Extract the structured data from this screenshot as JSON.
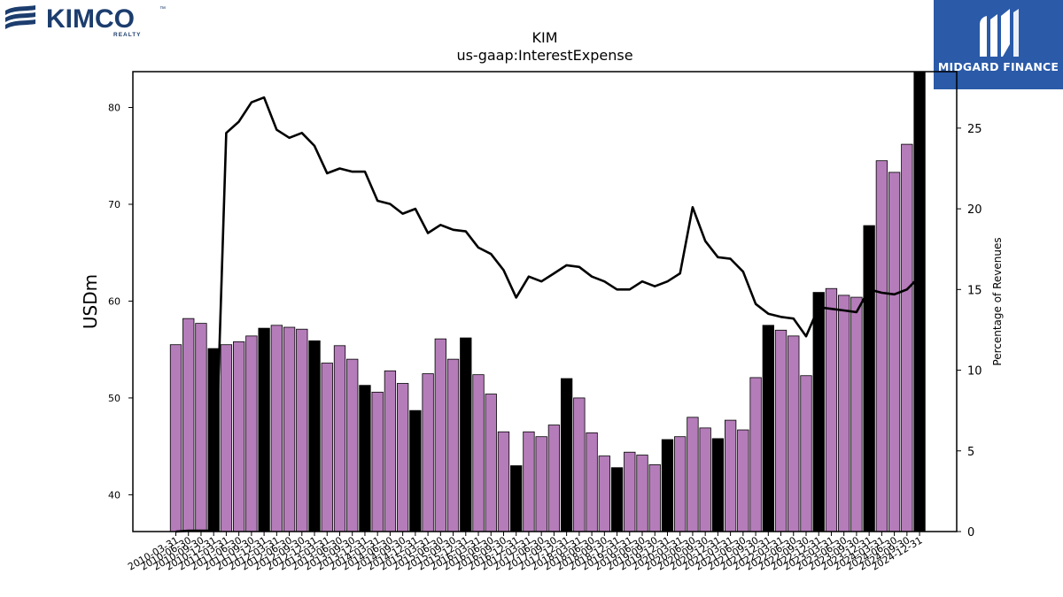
{
  "header": {
    "left_logo_text": "KIMCO",
    "left_logo_sub": "REALTY",
    "left_logo_tm": "™",
    "right_logo_text": "MIDGARD FINANCE"
  },
  "colors": {
    "bar_fill_regular": "#b57cba",
    "bar_fill_q4": "#000000",
    "line": "#000000",
    "kimco_brand": "#1c3d6e",
    "midgard_bg": "#2a5aa8"
  },
  "chart_data": {
    "type": "bar",
    "title": "KIM",
    "subtitle": "us-gaap:InterestExpense",
    "ylabel": "USDm",
    "y2label": "Percentage of Revenues",
    "ylim": [
      36.2,
      83.7
    ],
    "y2lim": [
      0,
      28.5
    ],
    "yticks": [
      40,
      50,
      60,
      70,
      80
    ],
    "y2ticks": [
      0,
      5,
      10,
      15,
      20,
      25
    ],
    "grid": false,
    "categories": [
      "2010-03-31",
      "2010-06-30",
      "2010-09-30",
      "2010-12-31",
      "2011-03-31",
      "2011-06-30",
      "2011-09-30",
      "2011-12-31",
      "2012-03-31",
      "2012-06-30",
      "2012-09-30",
      "2012-12-31",
      "2013-03-31",
      "2013-06-30",
      "2013-09-30",
      "2013-12-31",
      "2014-03-31",
      "2014-06-30",
      "2014-09-30",
      "2014-12-31",
      "2015-03-31",
      "2015-06-30",
      "2015-09-30",
      "2015-12-31",
      "2016-03-31",
      "2016-06-30",
      "2016-09-30",
      "2016-12-31",
      "2017-03-31",
      "2017-06-30",
      "2017-09-30",
      "2017-12-31",
      "2018-03-31",
      "2018-06-30",
      "2018-09-30",
      "2018-12-31",
      "2019-03-31",
      "2019-06-30",
      "2019-09-30",
      "2019-12-31",
      "2020-03-31",
      "2020-06-30",
      "2020-09-30",
      "2020-12-31",
      "2021-03-31",
      "2021-06-30",
      "2021-09-30",
      "2021-12-31",
      "2022-03-31",
      "2022-06-30",
      "2022-09-30",
      "2022-12-31",
      "2023-03-31",
      "2023-06-30",
      "2023-09-30",
      "2023-12-31",
      "2024-03-31",
      "2024-06-30",
      "2024-09-30",
      "2024-12-31"
    ],
    "series": [
      {
        "axis": "left",
        "kind": "bar",
        "values": [
          55.5,
          58.2,
          57.7,
          55.1,
          55.5,
          55.8,
          56.4,
          57.2,
          57.5,
          57.3,
          57.1,
          55.9,
          53.6,
          55.4,
          54.0,
          51.3,
          50.6,
          52.8,
          51.5,
          48.7,
          52.5,
          56.1,
          54.0,
          56.2,
          52.4,
          50.4,
          46.5,
          43.0,
          46.5,
          46.0,
          47.2,
          52.0,
          50.0,
          46.4,
          44.0,
          42.8,
          44.4,
          44.1,
          43.1,
          45.7,
          46.0,
          48.0,
          46.9,
          45.8,
          47.7,
          46.7,
          52.1,
          57.5,
          57.0,
          56.4,
          52.3,
          60.9,
          61.3,
          60.6,
          60.4,
          67.8,
          74.5,
          73.3,
          76.2,
          83.7
        ]
      },
      {
        "axis": "right",
        "kind": "line",
        "values": [
          0.0,
          0.05,
          0.05,
          0.05,
          24.7,
          25.4,
          26.6,
          26.9,
          24.9,
          24.4,
          24.7,
          23.9,
          22.2,
          22.5,
          22.3,
          22.3,
          20.5,
          20.3,
          19.7,
          20.0,
          18.5,
          19.0,
          18.7,
          18.6,
          17.6,
          17.2,
          16.2,
          14.5,
          15.8,
          15.5,
          16.0,
          16.5,
          16.4,
          15.8,
          15.5,
          15.0,
          15.0,
          15.5,
          15.2,
          15.5,
          16.0,
          20.1,
          18.0,
          17.0,
          16.9,
          16.1,
          14.1,
          13.5,
          13.3,
          13.2,
          12.1,
          13.9,
          13.8,
          13.7,
          13.6,
          15.0,
          14.8,
          14.7,
          15.0,
          15.8
        ]
      }
    ]
  }
}
